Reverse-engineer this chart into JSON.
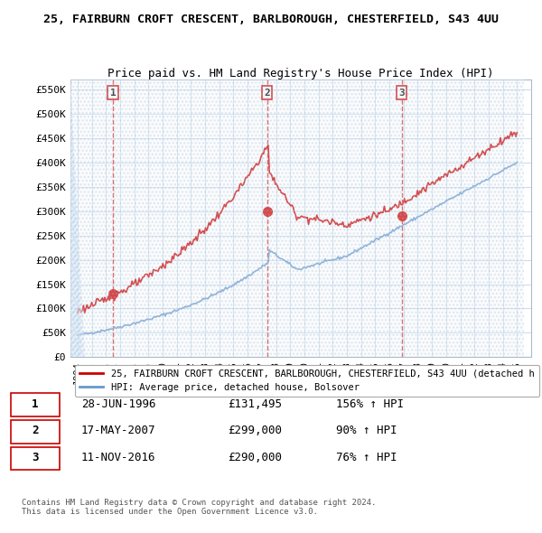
{
  "title": "25, FAIRBURN CROFT CRESCENT, BARLBOROUGH, CHESTERFIELD, S43 4UU",
  "subtitle": "Price paid vs. HM Land Registry's House Price Index (HPI)",
  "xlim": [
    1993.5,
    2026.0
  ],
  "ylim": [
    0,
    570000
  ],
  "yticks": [
    0,
    50000,
    100000,
    150000,
    200000,
    250000,
    300000,
    350000,
    400000,
    450000,
    500000,
    550000
  ],
  "ytick_labels": [
    "£0",
    "£50K",
    "£100K",
    "£150K",
    "£200K",
    "£250K",
    "£300K",
    "£350K",
    "£400K",
    "£450K",
    "£500K",
    "£550K"
  ],
  "xticks": [
    1994,
    1995,
    1996,
    1997,
    1998,
    1999,
    2000,
    2001,
    2002,
    2003,
    2004,
    2005,
    2006,
    2007,
    2008,
    2009,
    2010,
    2011,
    2012,
    2013,
    2014,
    2015,
    2016,
    2017,
    2018,
    2019,
    2020,
    2021,
    2022,
    2023,
    2024,
    2025
  ],
  "sale_dates": [
    1996.49,
    2007.38,
    2016.86
  ],
  "sale_prices": [
    131495,
    299000,
    290000
  ],
  "sale_labels": [
    "1",
    "2",
    "3"
  ],
  "legend_price_label": "25, FAIRBURN CROFT CRESCENT, BARLBOROUGH, CHESTERFIELD, S43 4UU (detached h",
  "legend_hpi_label": "HPI: Average price, detached house, Bolsover",
  "table_rows": [
    [
      "1",
      "28-JUN-1996",
      "£131,495",
      "156% ↑ HPI"
    ],
    [
      "2",
      "17-MAY-2007",
      "£299,000",
      "90% ↑ HPI"
    ],
    [
      "3",
      "11-NOV-2016",
      "£290,000",
      "76% ↑ HPI"
    ]
  ],
  "footer": "Contains HM Land Registry data © Crown copyright and database right 2024.\nThis data is licensed under the Open Government Licence v3.0.",
  "hpi_color": "#6699cc",
  "price_color": "#cc0000",
  "sale_point_color": "#cc0000",
  "vline_color": "#cc0000",
  "grid_color": "#ccddee",
  "bg_hatch_color": "#ddeeff"
}
